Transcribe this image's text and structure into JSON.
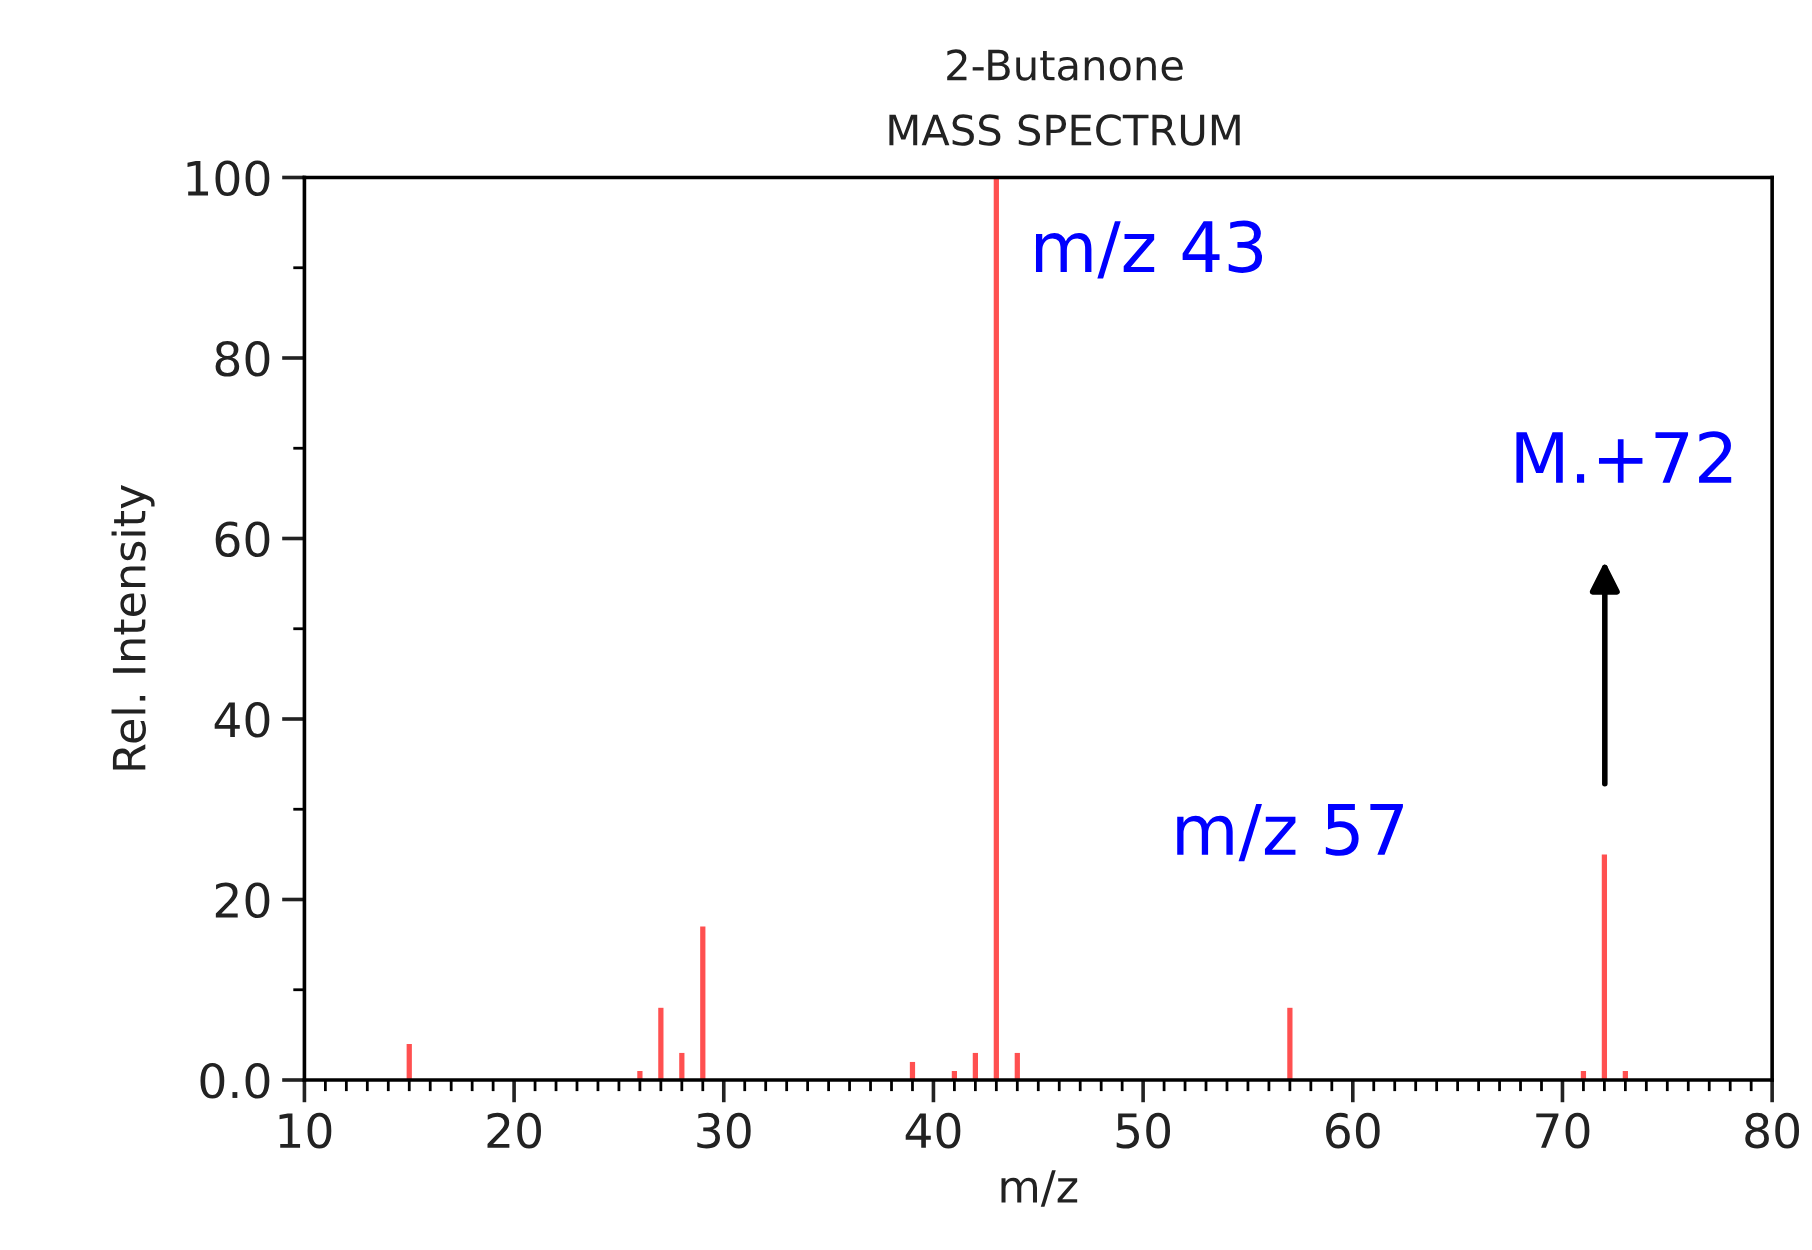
{
  "chart_data": {
    "type": "bar",
    "title": "2-Butanone",
    "subtitle": "MASS SPECTRUM",
    "xlabel": "m/z",
    "ylabel": "Rel. Intensity",
    "x": [
      15,
      26,
      27,
      28,
      29,
      39,
      41,
      42,
      43,
      44,
      57,
      71,
      72,
      73
    ],
    "values": [
      4,
      1,
      8,
      3,
      17,
      2,
      1,
      3,
      100,
      3,
      8,
      1,
      25,
      1
    ],
    "color": "#ff5050",
    "xlim": [
      10,
      80
    ],
    "ylim": [
      0,
      100
    ],
    "xticks": [
      10,
      20,
      30,
      40,
      50,
      60,
      70,
      80,
      {
        "value": 11,
        "label": null
      },
      {
        "value": 12,
        "label": null
      },
      {
        "value": 13,
        "label": null
      },
      {
        "value": 14,
        "label": null
      },
      {
        "value": 15,
        "label": null
      },
      {
        "value": 16,
        "label": null
      },
      {
        "value": 17,
        "label": null
      },
      {
        "value": 18,
        "label": null
      },
      {
        "value": 19,
        "label": null
      },
      {
        "value": 21,
        "label": null
      },
      {
        "value": 22,
        "label": null
      },
      {
        "value": 23,
        "label": null
      },
      {
        "value": 24,
        "label": null
      },
      {
        "value": 25,
        "label": null
      },
      {
        "value": 26,
        "label": null
      },
      {
        "value": 27,
        "label": null
      },
      {
        "value": 28,
        "label": null
      },
      {
        "value": 29,
        "label": null
      },
      {
        "value": 31,
        "label": null
      },
      {
        "value": 32,
        "label": null
      },
      {
        "value": 33,
        "label": null
      },
      {
        "value": 34,
        "label": null
      },
      {
        "value": 35,
        "label": null
      },
      {
        "value": 36,
        "label": null
      },
      {
        "value": 37,
        "label": null
      },
      {
        "value": 38,
        "label": null
      },
      {
        "value": 39,
        "label": null
      },
      {
        "value": 41,
        "label": null
      },
      {
        "value": 42,
        "label": null
      },
      {
        "value": 43,
        "label": null
      },
      {
        "value": 44,
        "label": null
      },
      {
        "value": 45,
        "label": null
      },
      {
        "value": 46,
        "label": null
      },
      {
        "value": 47,
        "label": null
      },
      {
        "value": 48,
        "label": null
      },
      {
        "value": 49,
        "label": null
      },
      {
        "value": 51,
        "label": null
      },
      {
        "value": 52,
        "label": null
      },
      {
        "value": 53,
        "label": null
      },
      {
        "value": 54,
        "label": null
      },
      {
        "value": 55,
        "label": null
      },
      {
        "value": 56,
        "label": null
      },
      {
        "value": 57,
        "label": null
      },
      {
        "value": 58,
        "label": null
      },
      {
        "value": 59,
        "label": null
      },
      {
        "value": 61,
        "label": null
      },
      {
        "value": 62,
        "label": null
      },
      {
        "value": 63,
        "label": null
      },
      {
        "value": 64,
        "label": null
      },
      {
        "value": 65,
        "label": null
      },
      {
        "value": 66,
        "label": null
      },
      {
        "value": 67,
        "label": null
      },
      {
        "value": 68,
        "label": null
      },
      {
        "value": 69,
        "label": null
      },
      {
        "value": 71,
        "label": null
      },
      {
        "value": 72,
        "label": null
      },
      {
        "value": 73,
        "label": null
      },
      {
        "value": 74,
        "label": null
      },
      {
        "value": 75,
        "label": null
      },
      {
        "value": 76,
        "label": null
      },
      {
        "value": 77,
        "label": null
      },
      {
        "value": 78,
        "label": null
      },
      {
        "value": 79,
        "label": null
      }
    ],
    "yticks": [
      {
        "value": 0,
        "label": "0.0"
      },
      20,
      40,
      60,
      80,
      100,
      {
        "value": 10,
        "label": null
      },
      {
        "value": 30,
        "label": null
      },
      {
        "value": 50,
        "label": null
      },
      {
        "value": 70,
        "label": null
      },
      {
        "value": 90,
        "label": null
      }
    ],
    "annotations": [
      {
        "text": "m/z 43",
        "x": 43,
        "y": 100
      },
      {
        "text": "m/z 57",
        "x": 57,
        "y": 8
      },
      "M.+72"
    ]
  }
}
